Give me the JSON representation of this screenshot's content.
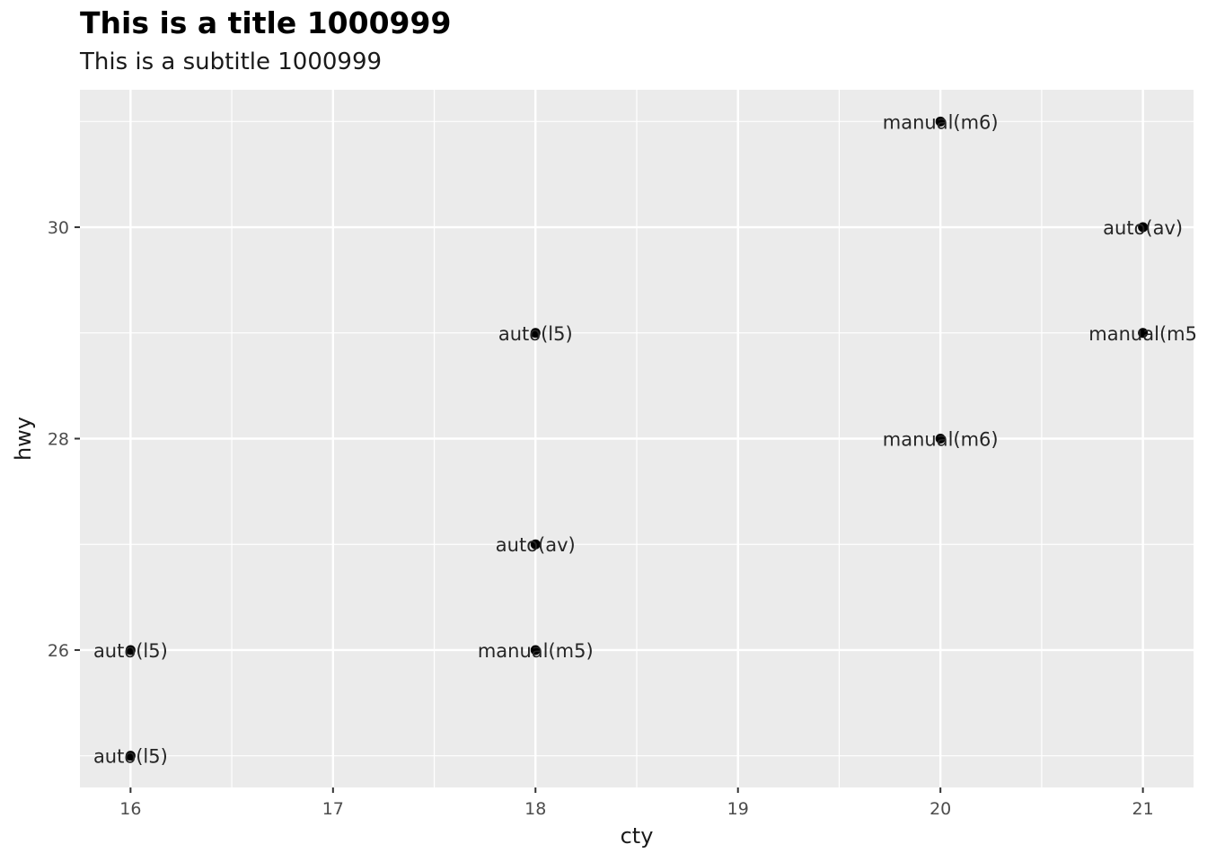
{
  "chart_data": {
    "type": "scatter",
    "title": "This is a title 1000999",
    "subtitle": "This is a subtitle 1000999",
    "xlabel": "cty",
    "ylabel": "hwy",
    "xlim": [
      15.75,
      21.25
    ],
    "ylim": [
      24.7,
      31.3
    ],
    "xticks": [
      16,
      17,
      18,
      19,
      20,
      21
    ],
    "yticks": [
      26,
      28,
      30
    ],
    "grid": true,
    "points": [
      {
        "x": 20,
        "y": 31,
        "label": "manual(m6)"
      },
      {
        "x": 21,
        "y": 30,
        "label": "auto(av)"
      },
      {
        "x": 18,
        "y": 29,
        "label": "auto(l5)"
      },
      {
        "x": 21,
        "y": 29,
        "label": "manual(m5"
      },
      {
        "x": 20,
        "y": 28,
        "label": "manual(m6)"
      },
      {
        "x": 18,
        "y": 27,
        "label": "auto(av)"
      },
      {
        "x": 16,
        "y": 26,
        "label": "auto(l5)"
      },
      {
        "x": 18,
        "y": 26,
        "label": "manual(m5)"
      },
      {
        "x": 16,
        "y": 25,
        "label": "auto(l5)"
      }
    ],
    "colors": {
      "panel": "#ebebeb",
      "grid_major": "#ffffff",
      "point": "#000000"
    }
  }
}
